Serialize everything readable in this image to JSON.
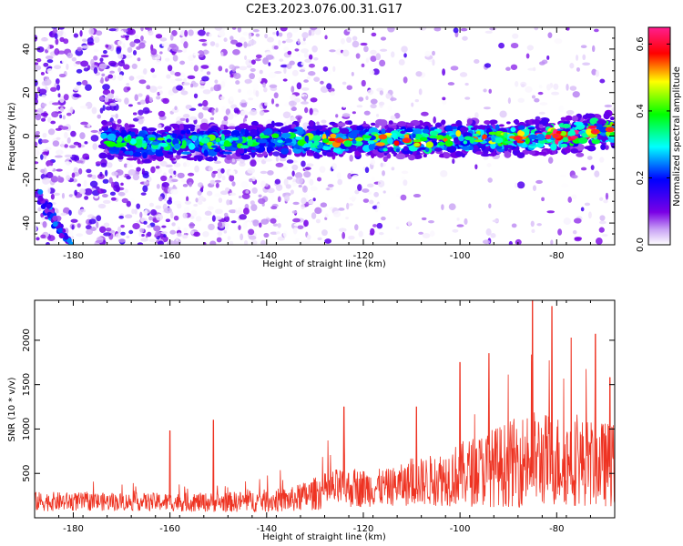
{
  "title": "C2E3.2023.076.00.31.G17",
  "chart_data": [
    {
      "type": "heatmap",
      "xlabel": "Height of straight line (km)",
      "ylabel": "Frequency (Hz)",
      "xlim": [
        -188,
        -68
      ],
      "ylim": [
        -50,
        50
      ],
      "x_ticks": [
        -180,
        -160,
        -140,
        -120,
        -100,
        -80
      ],
      "y_ticks": [
        -40,
        -20,
        0,
        20,
        40
      ],
      "colorbar": {
        "label": "Normalized spectral amplitude",
        "range": [
          0.0,
          0.65
        ],
        "ticks": [
          0.0,
          0.2,
          0.4,
          0.6
        ]
      },
      "ridge": [
        {
          "x": -172,
          "y": -2,
          "amp": 0.25
        },
        {
          "x": -165,
          "y": -4,
          "amp": 0.3
        },
        {
          "x": -160,
          "y": -3,
          "amp": 0.3
        },
        {
          "x": -150,
          "y": -3,
          "amp": 0.3
        },
        {
          "x": -140,
          "y": -2,
          "amp": 0.25
        },
        {
          "x": -130,
          "y": -2,
          "amp": 0.35
        },
        {
          "x": -125,
          "y": -2,
          "amp": 0.55
        },
        {
          "x": -120,
          "y": -1,
          "amp": 0.35
        },
        {
          "x": -111,
          "y": -2,
          "amp": 0.55
        },
        {
          "x": -100,
          "y": -1,
          "amp": 0.4
        },
        {
          "x": -88,
          "y": -1,
          "amp": 0.5
        },
        {
          "x": -80,
          "y": 0,
          "amp": 0.6
        },
        {
          "x": -72,
          "y": 2,
          "amp": 0.6
        },
        {
          "x": -69,
          "y": 3,
          "amp": 0.55
        }
      ]
    },
    {
      "type": "line",
      "xlabel": "Height of straight line (km)",
      "ylabel": "SNR (10 * v/v)",
      "xlim": [
        -188,
        -68
      ],
      "ylim": [
        0,
        2450
      ],
      "x_ticks": [
        -180,
        -160,
        -140,
        -120,
        -100,
        -80
      ],
      "y_ticks": [
        500,
        1000,
        1500,
        2000
      ],
      "color": "#ee3322",
      "envelope": [
        {
          "x": -188,
          "base": 150,
          "amp": 220
        },
        {
          "x": -170,
          "base": 150,
          "amp": 200
        },
        {
          "x": -150,
          "base": 140,
          "amp": 220
        },
        {
          "x": -135,
          "base": 160,
          "amp": 280
        },
        {
          "x": -126,
          "base": 260,
          "amp": 450
        },
        {
          "x": -115,
          "base": 280,
          "amp": 420
        },
        {
          "x": -105,
          "base": 340,
          "amp": 600
        },
        {
          "x": -95,
          "base": 420,
          "amp": 850
        },
        {
          "x": -85,
          "base": 500,
          "amp": 1100
        },
        {
          "x": -75,
          "base": 480,
          "amp": 1000
        },
        {
          "x": -68,
          "base": 450,
          "amp": 950
        }
      ],
      "spikes": [
        {
          "x": -160,
          "y": 980
        },
        {
          "x": -151,
          "y": 1100
        },
        {
          "x": -124,
          "y": 1250
        },
        {
          "x": -109,
          "y": 1250
        },
        {
          "x": -100,
          "y": 1750
        },
        {
          "x": -94,
          "y": 1850
        },
        {
          "x": -85,
          "y": 2450
        },
        {
          "x": -81,
          "y": 2380
        },
        {
          "x": -77,
          "y": 2030
        },
        {
          "x": -72,
          "y": 2070
        },
        {
          "x": -69,
          "y": 1580
        }
      ]
    }
  ]
}
